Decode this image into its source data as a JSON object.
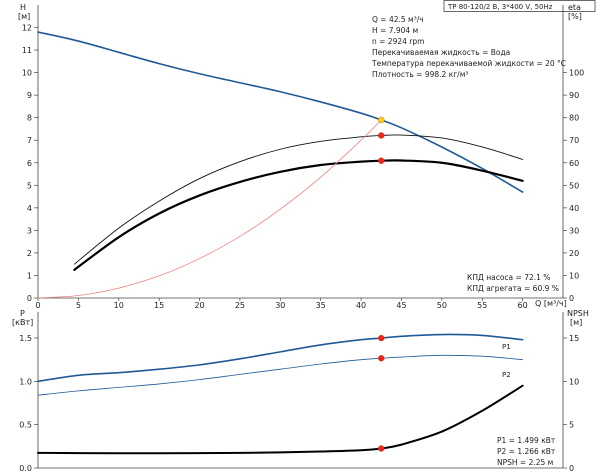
{
  "header": {
    "pump_label": "TP 80-120/2 B, 3*400 V, 50Hz"
  },
  "info": {
    "lines": [
      "Q = 42.5 м³/ч",
      "H = 7.904 м",
      "n = 2924 rpm",
      "Перекачиваемая жидкость = Вода",
      "Температура перекачиваемой жидкости = 20 °C",
      "Плотность = 998.2 кг/м³"
    ]
  },
  "efficiency_labels": [
    "КПД насоса = 72.1 %",
    "КПД агрегата = 60.9 %"
  ],
  "power_labels": [
    "P1 = 1.499 кВт",
    "P2 = 1.266 кВт",
    "NPSH = 2.25 м"
  ],
  "chart_data": [
    {
      "type": "line",
      "id": "head-efficiency",
      "ylabel_left": [
        "H",
        "[м]"
      ],
      "ylabel_right": [
        "eta",
        "[%]"
      ],
      "xlabel": "Q [м³/ч]",
      "xlim": [
        0,
        65
      ],
      "xticks": [
        0,
        5,
        10,
        15,
        20,
        25,
        30,
        35,
        40,
        45,
        50,
        55,
        60
      ],
      "ylim_left": [
        0,
        13
      ],
      "yticks_left": [
        0,
        1,
        2,
        3,
        4,
        5,
        6,
        7,
        8,
        9,
        10,
        11,
        12
      ],
      "ylim_right": [
        0,
        130
      ],
      "yticks_right": [
        0,
        10,
        20,
        30,
        40,
        50,
        60,
        70,
        80,
        90,
        100
      ],
      "grid": false,
      "series": [
        {
          "name": "H",
          "axis": "left",
          "color": "#1f5a96",
          "width": 1.6,
          "x": [
            0,
            5,
            10,
            15,
            20,
            25,
            30,
            35,
            40,
            42.5,
            45,
            50,
            55,
            60
          ],
          "y": [
            11.8,
            11.4,
            10.9,
            10.4,
            9.95,
            9.55,
            9.15,
            8.7,
            8.2,
            7.9,
            7.55,
            6.7,
            5.75,
            4.7
          ]
        },
        {
          "name": "eta pump",
          "axis": "right",
          "color": "#111111",
          "width": 0.9,
          "x": [
            4.5,
            10,
            15,
            20,
            25,
            30,
            35,
            40,
            42.5,
            45,
            50,
            55,
            60
          ],
          "y": [
            15,
            31,
            43,
            53,
            60.5,
            66,
            69.5,
            71.5,
            72.1,
            72.3,
            71,
            67,
            61.5
          ]
        },
        {
          "name": "eta unit",
          "axis": "right",
          "color": "#000000",
          "width": 2.2,
          "x": [
            4.5,
            10,
            15,
            20,
            25,
            30,
            35,
            40,
            42.5,
            45,
            50,
            55,
            60
          ],
          "y": [
            12.5,
            27,
            37.5,
            45.5,
            51.5,
            56,
            59,
            60.5,
            60.9,
            61,
            60,
            56.5,
            52
          ]
        },
        {
          "name": "system curve",
          "axis": "left",
          "color": "#f08080",
          "width": 0.8,
          "x": [
            0,
            5,
            10,
            15,
            20,
            25,
            30,
            35,
            40,
            42.5
          ],
          "y": [
            0,
            0.11,
            0.44,
            0.98,
            1.75,
            2.73,
            3.94,
            5.36,
            7.0,
            7.9
          ]
        }
      ],
      "markers": [
        {
          "x": 42.5,
          "y": 7.9,
          "axis": "left",
          "color": "#ffcc22"
        },
        {
          "x": 42.5,
          "y": 72.1,
          "axis": "right",
          "color": "#ee2222"
        },
        {
          "x": 42.5,
          "y": 60.9,
          "axis": "right",
          "color": "#ee2222"
        }
      ]
    },
    {
      "type": "line",
      "id": "power-npsh",
      "ylabel_left": [
        "P",
        "[кВт]"
      ],
      "ylabel_right": [
        "NPSH",
        "[м]"
      ],
      "xlim": [
        0,
        65
      ],
      "ylim_left": [
        0,
        1.8
      ],
      "yticks_left": [
        0,
        0.5,
        1.0,
        1.5
      ],
      "ylim_right": [
        0,
        18
      ],
      "yticks_right": [
        0,
        5,
        10,
        15
      ],
      "grid": false,
      "series": [
        {
          "name": "P1",
          "axis": "left",
          "color": "#1f5a96",
          "width": 1.6,
          "x": [
            0,
            5,
            10,
            15,
            20,
            25,
            30,
            35,
            40,
            42.5,
            45,
            50,
            55,
            60
          ],
          "y": [
            1.0,
            1.07,
            1.1,
            1.14,
            1.19,
            1.26,
            1.34,
            1.42,
            1.48,
            1.499,
            1.52,
            1.54,
            1.53,
            1.48
          ]
        },
        {
          "name": "P2",
          "axis": "left",
          "color": "#1f5a96",
          "width": 0.8,
          "x": [
            0,
            5,
            10,
            15,
            20,
            25,
            30,
            35,
            40,
            42.5,
            45,
            50,
            55,
            60
          ],
          "y": [
            0.84,
            0.89,
            0.93,
            0.97,
            1.02,
            1.08,
            1.14,
            1.2,
            1.25,
            1.266,
            1.28,
            1.3,
            1.29,
            1.25
          ]
        },
        {
          "name": "NPSH",
          "axis": "right",
          "color": "#000000",
          "width": 2.0,
          "x": [
            0,
            5,
            10,
            15,
            20,
            25,
            30,
            35,
            40,
            42.5,
            45,
            50,
            55,
            60
          ],
          "y": [
            1.75,
            1.72,
            1.7,
            1.7,
            1.72,
            1.75,
            1.8,
            1.9,
            2.05,
            2.25,
            2.7,
            4.2,
            6.6,
            9.5
          ]
        }
      ],
      "markers": [
        {
          "x": 42.5,
          "y": 1.499,
          "axis": "left",
          "color": "#ee2222"
        },
        {
          "x": 42.5,
          "y": 1.266,
          "axis": "left",
          "color": "#ee2222"
        },
        {
          "x": 42.5,
          "y": 2.25,
          "axis": "right",
          "color": "#ee2222"
        }
      ],
      "series_labels": [
        "P1",
        "P2"
      ]
    }
  ]
}
